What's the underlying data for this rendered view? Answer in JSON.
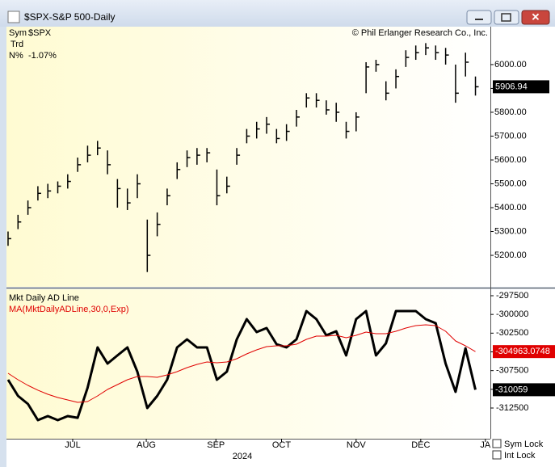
{
  "window": {
    "title": "$SPX-S&P 500-Daily"
  },
  "info": {
    "rows": [
      [
        "Sym",
        "$SPX"
      ],
      [
        "Trd",
        ""
      ],
      [
        "N%",
        "-1.07%"
      ]
    ],
    "copyright": "© Phil Erlanger Research Co., Inc."
  },
  "chart_data": [
    {
      "type": "ohlc",
      "xlim": [
        -0.16,
        48.5
      ],
      "ylim": [
        5068,
        6159
      ],
      "yticks": [
        {
          "value": 5200,
          "label": "5200.00"
        },
        {
          "value": 5300,
          "label": "5300.00"
        },
        {
          "value": 5400,
          "label": "5400.00"
        },
        {
          "value": 5500,
          "label": "5500.00"
        },
        {
          "value": 5600,
          "label": "5600.00"
        },
        {
          "value": 5700,
          "label": "5700.00"
        },
        {
          "value": 5800,
          "label": "5800.00"
        },
        {
          "value": 5900,
          "label": "5900.00"
        },
        {
          "value": 6000,
          "label": "6000.00"
        }
      ],
      "color": "#000000",
      "high": [
        5300,
        5370,
        5430,
        5490,
        5500,
        5510,
        5540,
        5610,
        5660,
        5680,
        5640,
        5520,
        5480,
        5540,
        5350,
        5380,
        5480,
        5590,
        5640,
        5650,
        5650,
        5560,
        5530,
        5650,
        5730,
        5760,
        5780,
        5730,
        5750,
        5810,
        5880,
        5880,
        5850,
        5840,
        5760,
        5800,
        6010,
        6020,
        5930,
        5980,
        6060,
        6080,
        6090,
        6080,
        6070,
        6000,
        6050,
        5950
      ],
      "low": [
        5240,
        5310,
        5370,
        5430,
        5440,
        5460,
        5480,
        5550,
        5590,
        5620,
        5540,
        5400,
        5390,
        5440,
        5130,
        5280,
        5410,
        5520,
        5570,
        5580,
        5590,
        5410,
        5460,
        5580,
        5670,
        5690,
        5710,
        5670,
        5680,
        5740,
        5820,
        5820,
        5790,
        5760,
        5690,
        5720,
        5880,
        5970,
        5850,
        5900,
        5990,
        6020,
        6040,
        6020,
        6000,
        5840,
        5950,
        5870
      ],
      "close": [
        5270,
        5340,
        5400,
        5460,
        5470,
        5490,
        5510,
        5580,
        5620,
        5650,
        5580,
        5480,
        5420,
        5500,
        5200,
        5330,
        5450,
        5560,
        5610,
        5620,
        5630,
        5450,
        5490,
        5620,
        5700,
        5730,
        5750,
        5690,
        5720,
        5780,
        5860,
        5850,
        5810,
        5800,
        5720,
        5780,
        5990,
        6000,
        5880,
        5950,
        6030,
        6050,
        6070,
        6050,
        6040,
        5880,
        6010,
        5906.94
      ]
    },
    {
      "type": "line",
      "xlim": [
        -0.16,
        48.5
      ],
      "ylim": [
        -316600,
        -296637
      ],
      "yticks": [
        -297500,
        -300000,
        -302500,
        -305000,
        -307500,
        -310000,
        -312500
      ],
      "xticks": [
        {
          "value": 6.5,
          "label": "JUL"
        },
        {
          "value": 13.9,
          "label": "AUG"
        },
        {
          "value": 20.9,
          "label": "SEP"
        },
        {
          "value": 27.5,
          "label": "OCT"
        },
        {
          "value": 35.0,
          "label": "NOV"
        },
        {
          "value": 41.5,
          "label": "DEC"
        },
        {
          "value": 48.0,
          "label": "JA"
        }
      ],
      "year_label": "2024",
      "series": [
        {
          "name": "Mkt Daily AD Line",
          "color": "#000000",
          "values": [
            -308720,
            -310880,
            -311960,
            -314120,
            -313580,
            -314120,
            -313580,
            -313800,
            -309800,
            -304410,
            -306560,
            -305480,
            -304410,
            -307640,
            -312500,
            -310880,
            -308720,
            -304410,
            -303330,
            -304410,
            -304410,
            -308720,
            -307640,
            -303330,
            -300630,
            -302360,
            -301820,
            -303980,
            -304410,
            -303330,
            -299550,
            -300630,
            -302790,
            -302250,
            -305480,
            -300630,
            -299550,
            -305480,
            -303870,
            -299550,
            -299550,
            -299550,
            -300630,
            -301170,
            -306560,
            -310340,
            -304520,
            -310059
          ]
        },
        {
          "name": "MA(MktDailyADLine,30,0,Exp)",
          "color": "#e00000",
          "values": [
            -307860,
            -308720,
            -309480,
            -310120,
            -310660,
            -311100,
            -311420,
            -311740,
            -311640,
            -310880,
            -310020,
            -309370,
            -308720,
            -308290,
            -308290,
            -308400,
            -308070,
            -307640,
            -307100,
            -306670,
            -306350,
            -306460,
            -306350,
            -305920,
            -305270,
            -304730,
            -304300,
            -304190,
            -304190,
            -303980,
            -303330,
            -302900,
            -302900,
            -302790,
            -303110,
            -302790,
            -302360,
            -302570,
            -302570,
            -302250,
            -301820,
            -301490,
            -301380,
            -301490,
            -302250,
            -303540,
            -304190,
            -304963.0748
          ]
        }
      ]
    }
  ],
  "controls": {
    "sym_lock": "Sym Lock",
    "int_lock": "Int Lock"
  }
}
